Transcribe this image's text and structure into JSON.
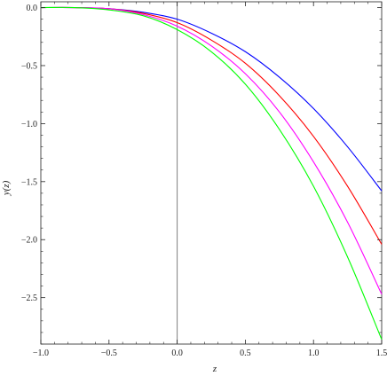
{
  "chart_data": {
    "type": "line",
    "title": "",
    "xlabel": "z",
    "ylabel": "y(z)",
    "xlim": [
      -1.0,
      1.5
    ],
    "ylim": [
      -2.9,
      0.05
    ],
    "grid": false,
    "legend": "none",
    "x_ticks": [
      "−1.0",
      "−0.5",
      "0.0",
      "0.5",
      "1.0",
      "1.5"
    ],
    "y_ticks": [
      "0.0",
      "−0.5",
      "−1.0",
      "−1.5",
      "−2.0",
      "−2.5"
    ],
    "x_tick_values": [
      -1.0,
      -0.5,
      0.0,
      0.5,
      1.0,
      1.5
    ],
    "y_tick_values": [
      0.0,
      -0.5,
      -1.0,
      -1.5,
      -2.0,
      -2.5
    ],
    "reference_line": {
      "x": 0.0,
      "color": "#808080"
    },
    "x": [
      -1.0,
      -0.75,
      -0.5,
      -0.25,
      0.0,
      0.25,
      0.5,
      0.75,
      1.0,
      1.25,
      1.5
    ],
    "series": [
      {
        "color": "#0000ff",
        "values": [
          0.0,
          0.0,
          -0.01,
          -0.04,
          -0.1,
          -0.22,
          -0.38,
          -0.6,
          -0.87,
          -1.2,
          -1.58
        ]
      },
      {
        "color": "#ff0000",
        "values": [
          0.0,
          0.0,
          -0.01,
          -0.05,
          -0.13,
          -0.28,
          -0.48,
          -0.76,
          -1.11,
          -1.54,
          -2.04
        ]
      },
      {
        "color": "#ff00ff",
        "values": [
          0.0,
          0.0,
          -0.01,
          -0.06,
          -0.16,
          -0.33,
          -0.57,
          -0.9,
          -1.33,
          -1.85,
          -2.47
        ]
      },
      {
        "color": "#00ff00",
        "values": [
          0.0,
          0.0,
          -0.02,
          -0.07,
          -0.19,
          -0.38,
          -0.66,
          -1.05,
          -1.54,
          -2.15,
          -2.86
        ]
      }
    ]
  }
}
